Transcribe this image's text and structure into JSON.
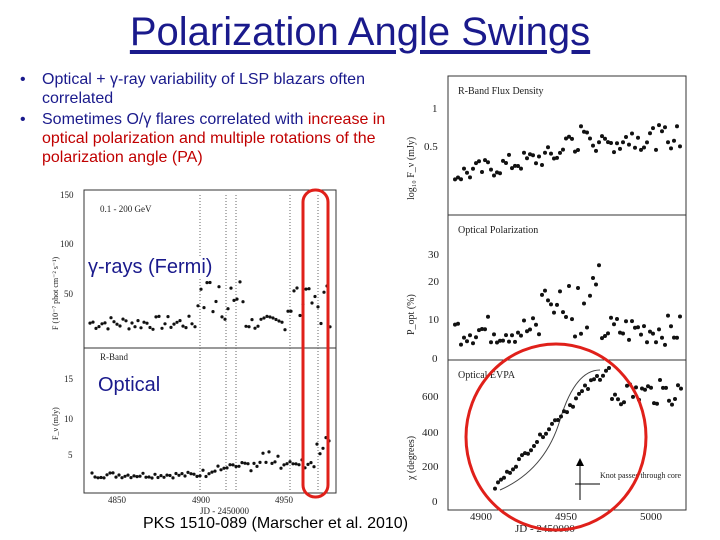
{
  "slide": {
    "title": "Polarization Angle Swings",
    "bullets": [
      {
        "text": "Optical + γ-ray variability of LSP blazars often correlated"
      },
      {
        "text": "Sometimes O/γ flares correlated with ",
        "red": "increase in optical polarization and multiple rotations of the polarization angle (PA)"
      }
    ],
    "caption": "PKS 1510-089 (Marscher et al. 2010)",
    "labels": {
      "gamma": "γ-rays (Fermi)",
      "optical": "Optical"
    },
    "colors": {
      "title": "#1a1a8c",
      "highlight": "#c00000",
      "text": "#000000"
    }
  },
  "left_panel": {
    "top_label": "0.1 - 200 GeV",
    "top_ylabel": "F (10⁻⁷ phot cm⁻² s⁻¹)",
    "top_ticks": [
      "150",
      "100",
      "50"
    ],
    "bottom_label": "R-Band",
    "bottom_ylabel": "F_ν (mJy)",
    "bottom_ticks": [
      "15",
      "10",
      "5"
    ],
    "x_ticks": [
      "4850",
      "4900",
      "4950"
    ],
    "xlabel": "JD - 2450000"
  },
  "right_panel": {
    "p1_label": "R-Band Flux Density",
    "p1_ylabel": "log₁₀ F_ν (mJy)",
    "p1_ticks": [
      "1",
      "0.5"
    ],
    "p2_label": "Optical Polarization",
    "p2_ylabel": "P_opt (%)",
    "p2_ticks": [
      "30",
      "20",
      "10",
      "0"
    ],
    "p3_label": "Optical EVPA",
    "p3_ylabel": "χ (degrees)",
    "p3_ticks": [
      "600",
      "400",
      "200",
      "0"
    ],
    "annotation": "Knot passes through core",
    "x_ticks": [
      "4900",
      "4950",
      "5000"
    ],
    "xlabel": "JD - 2450000"
  }
}
